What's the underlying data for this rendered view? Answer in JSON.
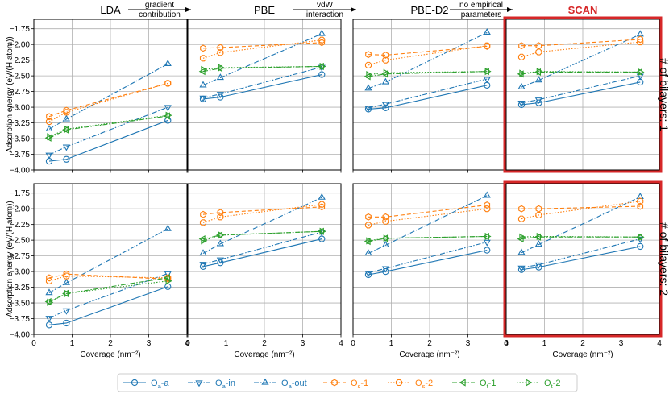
{
  "chart_data": {
    "type": "line",
    "columns": [
      {
        "title": "LDA",
        "highlight": false
      },
      {
        "title": "PBE",
        "highlight": false
      },
      {
        "title": "PBE-D2",
        "highlight": false
      },
      {
        "title": "SCAN",
        "highlight": true,
        "highlight_color": "#d62728"
      }
    ],
    "transitions": [
      [
        "gradient",
        "contribution"
      ],
      [
        "vdW",
        "interaction"
      ],
      [
        "no empirical",
        "parameters"
      ]
    ],
    "rows": [
      {
        "label": "# of bilayers: 1"
      },
      {
        "label": "# of bilayers: 2"
      }
    ],
    "xlabel": "Coverage (nm⁻²)",
    "ylabel": "Adsorption energy (eV/(H atom))",
    "xlim": [
      0,
      4
    ],
    "ylim": [
      -4.0,
      -1.6
    ],
    "xticks": [
      0,
      1,
      2,
      3,
      4
    ],
    "xtick_labels": [
      "0",
      "1",
      "2",
      "3",
      "4"
    ],
    "yticks": [
      -4.0,
      -3.75,
      -3.5,
      -3.25,
      -3.0,
      -2.75,
      -2.5,
      -2.25,
      -2.0,
      -1.75
    ],
    "ytick_labels": [
      "−4.00",
      "−3.75",
      "−3.50",
      "−3.25",
      "−3.00",
      "−2.75",
      "−2.50",
      "−2.25",
      "−2.00",
      "−1.75"
    ],
    "grid": true,
    "x": [
      0.4,
      0.85,
      3.5
    ],
    "series": [
      {
        "name": "Oₐ-a",
        "sub": "a",
        "base": "O",
        "suffix": "-a",
        "color": "#1f77b4",
        "marker": "circle",
        "dash": "solid"
      },
      {
        "name": "Oₐ-in",
        "sub": "a",
        "base": "O",
        "suffix": "-in",
        "color": "#1f77b4",
        "marker": "triangle-down",
        "dash": "dashdot"
      },
      {
        "name": "Oₐ-out",
        "sub": "a",
        "base": "O",
        "suffix": "-out",
        "color": "#1f77b4",
        "marker": "triangle-up",
        "dash": "dashdot"
      },
      {
        "name": "Oₛ-1",
        "sub": "s",
        "base": "O",
        "suffix": "-1",
        "color": "#ff7f0e",
        "marker": "hexagon",
        "dash": "dashed"
      },
      {
        "name": "Oₛ-2",
        "sub": "s",
        "base": "O",
        "suffix": "-2",
        "color": "#ff7f0e",
        "marker": "octagon",
        "dash": "dotted"
      },
      {
        "name": "Oₜ-1",
        "sub": "t",
        "base": "O",
        "suffix": "-1",
        "color": "#2ca02c",
        "marker": "triangle-left",
        "dash": "dashdot"
      },
      {
        "name": "Oₜ-2",
        "sub": "t",
        "base": "O",
        "suffix": "-2",
        "color": "#2ca02c",
        "marker": "triangle-right",
        "dash": "dotted"
      }
    ],
    "values": [
      [
        [
          [
            -3.86,
            -3.83,
            -3.21
          ],
          [
            -3.76,
            -3.63,
            -3.0
          ],
          [
            -3.35,
            -3.19,
            -2.31
          ],
          [
            -3.15,
            -3.05,
            -2.62
          ],
          [
            -3.23,
            -3.08,
            -2.62
          ],
          [
            -3.49,
            -3.36,
            -3.14
          ],
          [
            -3.47,
            -3.35,
            -3.13
          ]
        ],
        [
          [
            -2.87,
            -2.84,
            -2.48
          ],
          [
            -2.85,
            -2.79,
            -2.36
          ],
          [
            -2.65,
            -2.53,
            -1.83
          ],
          [
            -2.06,
            -2.05,
            -1.97
          ],
          [
            -2.22,
            -2.13,
            -1.93
          ],
          [
            -2.43,
            -2.38,
            -2.35
          ],
          [
            -2.4,
            -2.37,
            -2.35
          ]
        ],
        [
          [
            -3.03,
            -3.01,
            -2.65
          ],
          [
            -3.01,
            -2.95,
            -2.55
          ],
          [
            -2.7,
            -2.6,
            -1.81
          ],
          [
            -2.16,
            -2.17,
            -2.03
          ],
          [
            -2.33,
            -2.25,
            -2.02
          ],
          [
            -2.51,
            -2.47,
            -2.43
          ],
          [
            -2.48,
            -2.45,
            -2.43
          ]
        ],
        [
          [
            -2.96,
            -2.93,
            -2.6
          ],
          [
            -2.93,
            -2.88,
            -2.5
          ],
          [
            -2.68,
            -2.57,
            -1.84
          ],
          [
            -2.02,
            -2.02,
            -1.92
          ],
          [
            -2.2,
            -2.12,
            -1.96
          ],
          [
            -2.47,
            -2.44,
            -2.44
          ],
          [
            -2.46,
            -2.43,
            -2.44
          ]
        ]
      ],
      [
        [
          [
            -3.85,
            -3.82,
            -3.24
          ],
          [
            -3.74,
            -3.62,
            -3.03
          ],
          [
            -3.34,
            -3.18,
            -2.32
          ],
          [
            -3.1,
            -3.04,
            -3.12
          ],
          [
            -3.15,
            -3.07,
            -3.1
          ],
          [
            -3.48,
            -3.35,
            -3.1
          ],
          [
            -3.49,
            -3.35,
            -3.15
          ]
        ],
        [
          [
            -2.92,
            -2.86,
            -2.48
          ],
          [
            -2.88,
            -2.81,
            -2.37
          ],
          [
            -2.71,
            -2.56,
            -1.82
          ],
          [
            -2.09,
            -2.06,
            -1.97
          ],
          [
            -2.22,
            -2.13,
            -1.93
          ],
          [
            -2.48,
            -2.42,
            -2.36
          ],
          [
            -2.51,
            -2.42,
            -2.36
          ]
        ],
        [
          [
            -3.05,
            -3.0,
            -2.66
          ],
          [
            -3.02,
            -2.95,
            -2.53
          ],
          [
            -2.71,
            -2.58,
            -1.79
          ],
          [
            -2.13,
            -2.13,
            -1.94
          ],
          [
            -2.26,
            -2.2,
            -2.0
          ],
          [
            -2.52,
            -2.47,
            -2.44
          ],
          [
            -2.51,
            -2.47,
            -2.44
          ]
        ],
        [
          [
            -2.97,
            -2.93,
            -2.6
          ],
          [
            -2.94,
            -2.89,
            -2.48
          ],
          [
            -2.7,
            -2.57,
            -1.81
          ],
          [
            -2.0,
            -2.0,
            -1.96
          ],
          [
            -2.16,
            -2.1,
            -1.88
          ],
          [
            -2.48,
            -2.45,
            -2.45
          ],
          [
            -2.45,
            -2.44,
            -2.45
          ]
        ]
      ]
    ]
  }
}
